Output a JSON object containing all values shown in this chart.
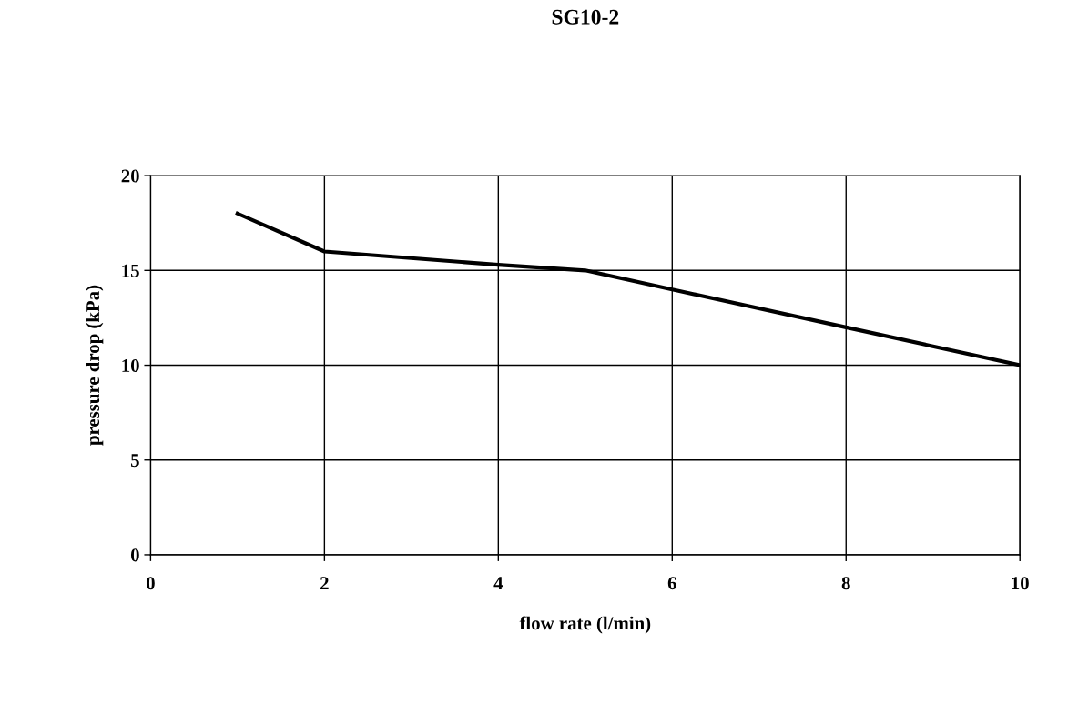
{
  "chart_data": {
    "type": "line",
    "title": "SG10-2",
    "xlabel": "flow rate (l/min)",
    "ylabel": "pressure drop (kPa)",
    "x": [
      1,
      2,
      4,
      5,
      6,
      8,
      10
    ],
    "series": [
      {
        "color": "#000000",
        "values": [
          18,
          16,
          15.3,
          15,
          14,
          12,
          10
        ]
      }
    ],
    "xlim": [
      0,
      10
    ],
    "xticks": [
      0,
      2,
      4,
      6,
      8,
      10
    ],
    "ylim": [
      0,
      20
    ],
    "yticks": [
      0,
      5,
      10,
      15,
      20
    ],
    "grid": true,
    "legend": false,
    "marker": "none",
    "line_style": "solid"
  }
}
